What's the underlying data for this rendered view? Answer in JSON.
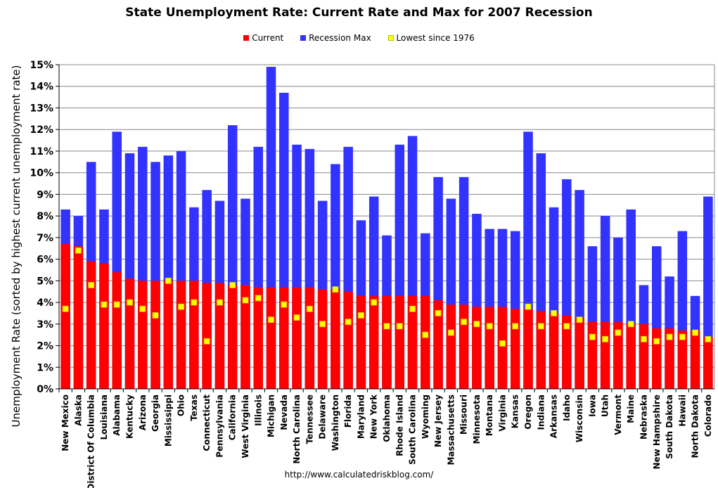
{
  "chart_data": {
    "type": "bar",
    "title": "State Unemployment Rate: Current Rate and Max for 2007 Recession",
    "ylabel": "Unemployment Rate (sorted by highest current unemployment rate)",
    "ylim": [
      0,
      15
    ],
    "yticks": [
      "0%",
      "1%",
      "2%",
      "3%",
      "4%",
      "5%",
      "6%",
      "7%",
      "8%",
      "9%",
      "10%",
      "11%",
      "12%",
      "13%",
      "14%",
      "15%"
    ],
    "grid": true,
    "legend_position": "top-center",
    "legend": [
      {
        "name": "Current",
        "color": "#ff0000"
      },
      {
        "name": "Recession Max",
        "color": "#3333ff"
      },
      {
        "name": "Lowest since 1976",
        "color": "#ffff00"
      }
    ],
    "categories": [
      "New Mexico",
      "Alaska",
      "District Of Columbia",
      "Louisiana",
      "Alabama",
      "Kentucky",
      "Arizona",
      "Georgia",
      "Mississippi",
      "Ohio",
      "Texas",
      "Connecticut",
      "Pennsylvania",
      "California",
      "West Virginia",
      "Illinois",
      "Michigan",
      "Nevada",
      "North Carolina",
      "Tennessee",
      "Delaware",
      "Washington",
      "Florida",
      "Maryland",
      "New York",
      "Oklahoma",
      "Rhode Island",
      "South Carolina",
      "Wyoming",
      "New Jersey",
      "Massachusetts",
      "Missouri",
      "Minnesota",
      "Montana",
      "Virginia",
      "Kansas",
      "Oregon",
      "Indiana",
      "Arkansas",
      "Idaho",
      "Wisconsin",
      "Iowa",
      "Utah",
      "Vermont",
      "Maine",
      "Nebraska",
      "New Hampshire",
      "South Dakota",
      "Hawaii",
      "North Dakota",
      "Colorado"
    ],
    "series": [
      {
        "name": "Current",
        "values": [
          6.7,
          6.6,
          5.9,
          5.8,
          5.4,
          5.1,
          5.0,
          5.0,
          5.0,
          5.0,
          5.0,
          4.9,
          4.9,
          4.8,
          4.8,
          4.7,
          4.7,
          4.7,
          4.7,
          4.7,
          4.6,
          4.6,
          4.5,
          4.3,
          4.3,
          4.3,
          4.3,
          4.3,
          4.3,
          4.1,
          3.9,
          3.9,
          3.8,
          3.8,
          3.8,
          3.7,
          3.7,
          3.6,
          3.5,
          3.4,
          3.3,
          3.1,
          3.1,
          3.1,
          3.0,
          3.0,
          2.8,
          2.8,
          2.7,
          2.7,
          2.4
        ]
      },
      {
        "name": "Recession Max",
        "values": [
          8.3,
          8.0,
          10.5,
          8.3,
          11.9,
          10.9,
          11.2,
          10.5,
          10.8,
          11.0,
          8.4,
          9.2,
          8.7,
          12.2,
          8.8,
          11.2,
          14.9,
          13.7,
          11.3,
          11.1,
          8.7,
          10.4,
          11.2,
          7.8,
          8.9,
          7.1,
          11.3,
          11.7,
          7.2,
          9.8,
          8.8,
          9.8,
          8.1,
          7.4,
          7.4,
          7.3,
          11.9,
          10.9,
          8.4,
          9.7,
          9.2,
          6.6,
          8.0,
          7.0,
          8.3,
          4.8,
          6.6,
          5.2,
          7.3,
          4.3,
          8.9
        ]
      },
      {
        "name": "Lowest since 1976",
        "values": [
          3.7,
          6.4,
          4.8,
          3.9,
          3.9,
          4.0,
          3.7,
          3.4,
          5.0,
          3.8,
          4.0,
          2.2,
          4.0,
          4.8,
          4.1,
          4.2,
          3.2,
          3.9,
          3.3,
          3.7,
          3.0,
          4.6,
          3.1,
          3.4,
          4.0,
          2.9,
          2.9,
          3.7,
          2.5,
          3.5,
          2.6,
          3.1,
          3.0,
          2.9,
          2.1,
          2.9,
          3.8,
          2.9,
          3.5,
          2.9,
          3.2,
          2.4,
          2.3,
          2.6,
          3.0,
          2.3,
          2.2,
          2.4,
          2.4,
          2.6,
          2.3
        ]
      }
    ]
  },
  "source": "http://www.calculatedriskblog.com/"
}
